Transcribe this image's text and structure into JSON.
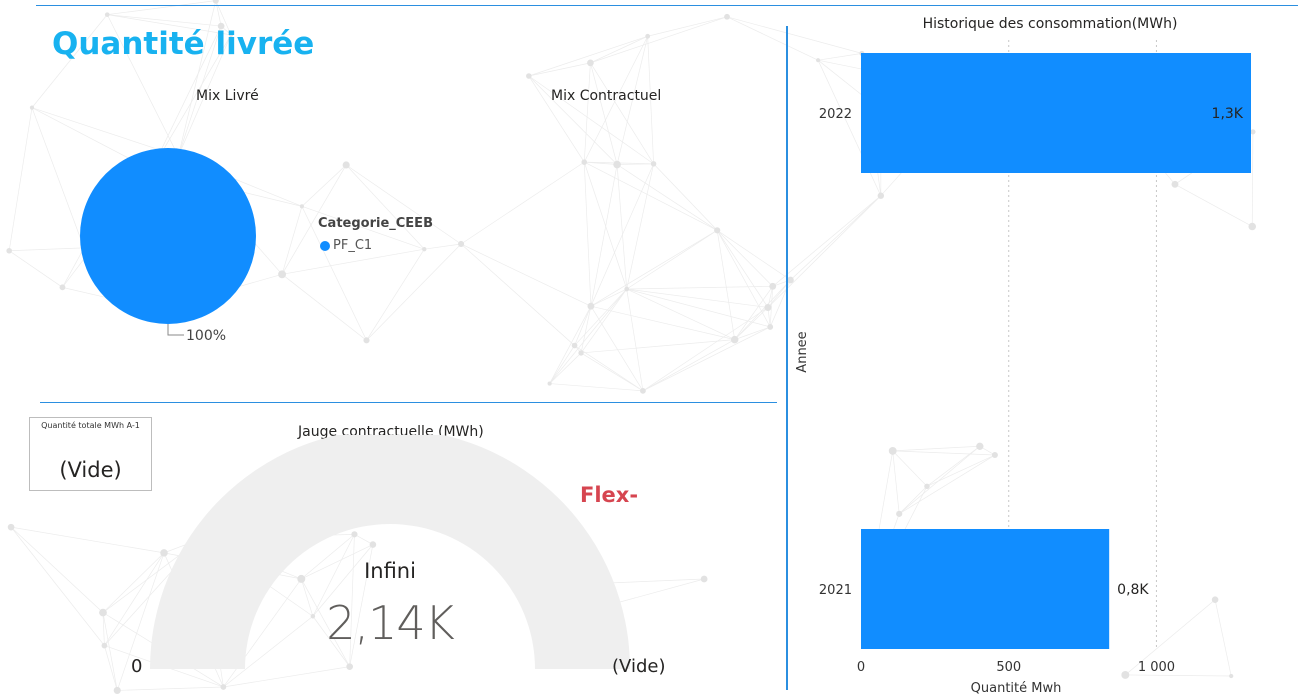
{
  "page": {
    "title": "Quantité livrée"
  },
  "mix_livre": {
    "title": "Mix Livré",
    "slice_label": "100%",
    "legend_title": "Categorie_CEEB",
    "legend_items": [
      "PF_C1"
    ]
  },
  "mix_contractuel": {
    "title": "Mix Contractuel"
  },
  "card": {
    "label": "Quantité totale MWh A-1",
    "value": "(Vide)"
  },
  "gauge": {
    "title": "Jauge contractuelle (MWh)",
    "center_label": "Infini",
    "value": "2,14K",
    "min_label": "0",
    "max_label": "(Vide)",
    "flex_label": "Flex-"
  },
  "colors": {
    "accent": "#118dff",
    "title": "#18b2f0",
    "divider": "#2b8fe0",
    "gauge_track": "#efefef",
    "flex": "#d64550"
  },
  "chart_data": [
    {
      "type": "pie",
      "title": "Mix Livré",
      "categories": [
        "PF_C1"
      ],
      "values": [
        100
      ],
      "labels": [
        "100%"
      ],
      "legend_title": "Categorie_CEEB",
      "legend_position": "right"
    },
    {
      "type": "bar",
      "orientation": "horizontal",
      "title": "Historique des consommation(MWh)",
      "categories": [
        "2022",
        "2021"
      ],
      "values": [
        1320,
        840
      ],
      "data_labels": [
        "1,3K",
        "0,8K"
      ],
      "xlabel": "Quantité Mwh",
      "ylabel": "Annee",
      "xlim": [
        0,
        1320
      ],
      "x_ticks": [
        0,
        500,
        1000
      ],
      "x_tick_labels": [
        "0",
        "500",
        "1 000"
      ],
      "grid": true
    }
  ]
}
